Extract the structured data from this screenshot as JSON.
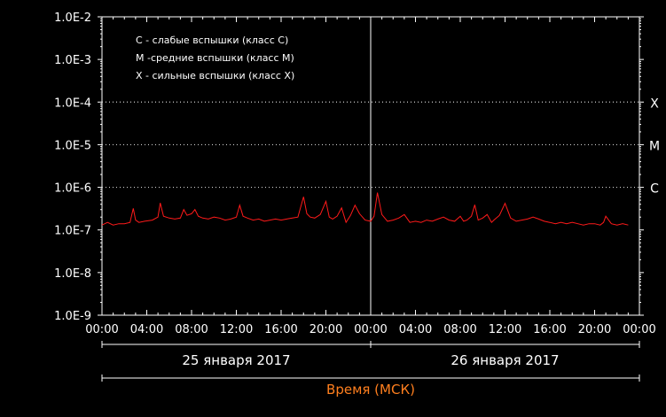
{
  "chart_data": {
    "type": "line",
    "title": "",
    "xlabel": "Время (МСК)",
    "ylabel": "",
    "y_scale": "log",
    "ylim": [
      1e-09,
      0.01
    ],
    "xlim_hours": [
      0,
      48
    ],
    "y_tick_labels": [
      "1.0E-2",
      "1.0E-3",
      "1.0E-4",
      "1.0E-5",
      "1.0E-6",
      "1.0E-7",
      "1.0E-8",
      "1.0E-9"
    ],
    "y_tick_values": [
      0.01,
      0.001,
      0.0001,
      1e-05,
      1e-06,
      1e-07,
      1e-08,
      1e-09
    ],
    "x_tick_labels": [
      "00:00",
      "04:00",
      "08:00",
      "12:00",
      "16:00",
      "20:00",
      "00:00",
      "04:00",
      "08:00",
      "12:00",
      "16:00",
      "20:00",
      "00:00"
    ],
    "x_tick_hours": [
      0,
      4,
      8,
      12,
      16,
      20,
      24,
      28,
      32,
      36,
      40,
      44,
      48
    ],
    "day_labels": [
      "25 января 2017",
      "26 января 2017"
    ],
    "day_divider_hour": 24,
    "flare_classes": [
      {
        "label": "X",
        "value": 0.0001
      },
      {
        "label": "M",
        "value": 1e-05
      },
      {
        "label": "C",
        "value": 1e-06
      }
    ],
    "legend": [
      "C - слабые вспышки (класс C)",
      "M -средние вспышки (класс M)",
      "X - сильные вспышки (класс X)"
    ],
    "grid": "dotted lines at X, M, C levels",
    "series": [
      {
        "color": "#ff1a1a",
        "x": [
          0,
          0.5,
          1,
          1.5,
          2,
          2.5,
          2.8,
          3,
          3.3,
          3.8,
          4.5,
          5,
          5.2,
          5.5,
          6,
          6.5,
          7,
          7.3,
          7.6,
          8,
          8.3,
          8.6,
          9,
          9.5,
          10,
          10.5,
          11,
          11.5,
          12,
          12.3,
          12.6,
          13,
          13.5,
          14,
          14.5,
          15,
          15.5,
          16,
          16.5,
          17,
          17.5,
          18,
          18.3,
          18.6,
          19,
          19.5,
          20,
          20.3,
          20.6,
          21,
          21.4,
          21.8,
          22.2,
          22.6,
          23,
          23.5,
          24,
          24.3,
          24.6,
          25,
          25.5,
          26,
          26.5,
          27,
          27.5,
          28,
          28.5,
          29,
          29.5,
          30,
          30.5,
          31,
          31.5,
          32,
          32.3,
          32.6,
          33,
          33.3,
          33.6,
          34,
          34.4,
          34.8,
          35,
          35.5,
          36,
          36.5,
          37,
          37.5,
          38,
          38.5,
          39,
          39.5,
          40,
          40.5,
          41,
          41.5,
          42,
          42.5,
          43,
          43.5,
          44,
          44.5,
          44.8,
          45,
          45.5,
          46,
          46.5,
          47
        ],
        "y": [
          1.3e-07,
          1.5e-07,
          1.3e-07,
          1.4e-07,
          1.4e-07,
          1.5e-07,
          3.2e-07,
          1.7e-07,
          1.5e-07,
          1.6e-07,
          1.7e-07,
          2e-07,
          4.3e-07,
          2.1e-07,
          1.9e-07,
          1.8e-07,
          1.9e-07,
          3e-07,
          2.2e-07,
          2.4e-07,
          3e-07,
          2.1e-07,
          1.9e-07,
          1.8e-07,
          2e-07,
          1.9e-07,
          1.7e-07,
          1.8e-07,
          2e-07,
          3.8e-07,
          2.1e-07,
          1.9e-07,
          1.7e-07,
          1.8e-07,
          1.6e-07,
          1.7e-07,
          1.8e-07,
          1.7e-07,
          1.8e-07,
          1.9e-07,
          2e-07,
          6e-07,
          2.4e-07,
          2e-07,
          1.9e-07,
          2.3e-07,
          4.7e-07,
          2e-07,
          1.8e-07,
          2.1e-07,
          3.3e-07,
          1.5e-07,
          2.2e-07,
          3.8e-07,
          2.4e-07,
          1.7e-07,
          1.6e-07,
          2.1e-07,
          7.5e-07,
          2.3e-07,
          1.6e-07,
          1.7e-07,
          1.9e-07,
          2.3e-07,
          1.5e-07,
          1.6e-07,
          1.5e-07,
          1.7e-07,
          1.6e-07,
          1.8e-07,
          2e-07,
          1.7e-07,
          1.6e-07,
          2.1e-07,
          1.6e-07,
          1.7e-07,
          2.1e-07,
          3.9e-07,
          1.7e-07,
          1.9e-07,
          2.3e-07,
          1.5e-07,
          1.7e-07,
          2.2e-07,
          4.2e-07,
          1.9e-07,
          1.6e-07,
          1.7e-07,
          1.8e-07,
          2e-07,
          1.8e-07,
          1.6e-07,
          1.5e-07,
          1.4e-07,
          1.5e-07,
          1.4e-07,
          1.5e-07,
          1.4e-07,
          1.3e-07,
          1.4e-07,
          1.4e-07,
          1.3e-07,
          1.5e-07,
          2.1e-07,
          1.4e-07,
          1.3e-07,
          1.4e-07,
          1.3e-07
        ]
      }
    ]
  }
}
